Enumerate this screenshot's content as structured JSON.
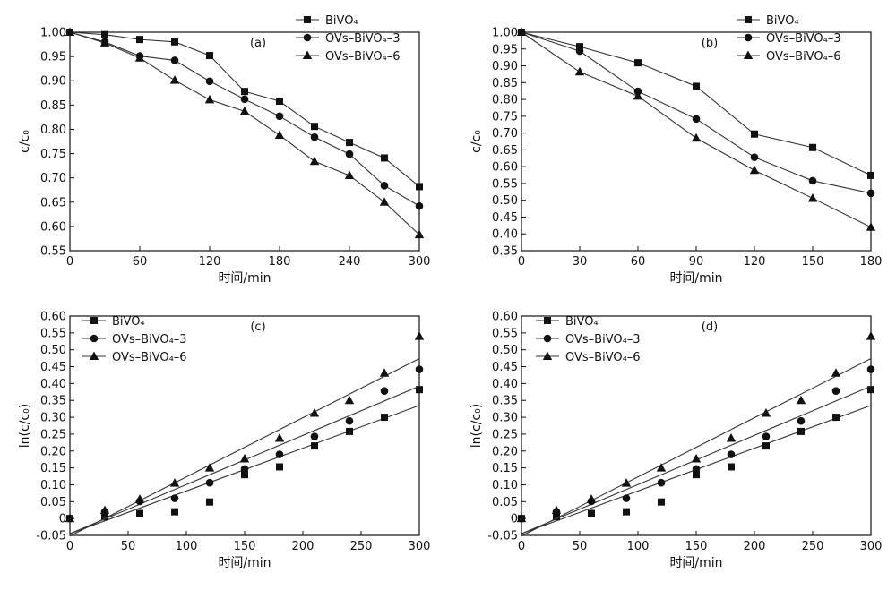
{
  "chart_data": [
    {
      "panel_label": "(a)",
      "type": "line",
      "xlabel": "时间/min",
      "ylabel": "c/c₀",
      "xlim": [
        0,
        300
      ],
      "ylim": [
        0.55,
        1.0
      ],
      "xticks": [
        "0",
        "60",
        "120",
        "180",
        "240",
        "300"
      ],
      "yticks": [
        "0.55",
        "0.60",
        "0.65",
        "0.70",
        "0.75",
        "0.80",
        "0.85",
        "0.90",
        "0.95",
        "1.00"
      ],
      "legend_position": "top-right",
      "x": [
        0,
        30,
        60,
        90,
        120,
        150,
        180,
        210,
        240,
        270,
        300
      ],
      "series": [
        {
          "name": "BiVO₄",
          "marker": "square",
          "values": [
            1.0,
            0.995,
            0.985,
            0.98,
            0.952,
            0.878,
            0.858,
            0.806,
            0.773,
            0.741,
            0.682
          ]
        },
        {
          "name": "OVs–BiVO₄–3",
          "marker": "circle",
          "values": [
            1.0,
            0.98,
            0.951,
            0.942,
            0.899,
            0.862,
            0.827,
            0.784,
            0.749,
            0.684,
            0.642
          ]
        },
        {
          "name": "OVs–BiVO₄–6",
          "marker": "triangle",
          "values": [
            1.0,
            0.978,
            0.947,
            0.901,
            0.861,
            0.837,
            0.788,
            0.734,
            0.705,
            0.65,
            0.583
          ]
        }
      ]
    },
    {
      "panel_label": "(b)",
      "type": "line",
      "xlabel": "时间/min",
      "ylabel": "c/c₀",
      "xlim": [
        0,
        180
      ],
      "ylim": [
        0.35,
        1.0
      ],
      "xticks": [
        "0",
        "30",
        "60",
        "90",
        "120",
        "150",
        "180"
      ],
      "yticks": [
        "0.35",
        "0.40",
        "0.45",
        "0.50",
        "0.55",
        "0.60",
        "0.65",
        "0.70",
        "0.75",
        "0.80",
        "0.85",
        "0.90",
        "0.95",
        "1.00"
      ],
      "legend_position": "top-right",
      "x": [
        0,
        30,
        60,
        90,
        120,
        150,
        180
      ],
      "series": [
        {
          "name": "BiVO₄",
          "marker": "square",
          "values": [
            1.0,
            0.957,
            0.909,
            0.839,
            0.697,
            0.657,
            0.574
          ]
        },
        {
          "name": "OVs–BiVO₄–3",
          "marker": "circle",
          "values": [
            1.0,
            0.944,
            0.824,
            0.742,
            0.628,
            0.558,
            0.521
          ]
        },
        {
          "name": "OVs–BiVO₄–6",
          "marker": "triangle",
          "values": [
            1.0,
            0.882,
            0.81,
            0.685,
            0.589,
            0.506,
            0.42
          ]
        }
      ]
    },
    {
      "panel_label": "(c)",
      "type": "scatter",
      "xlabel": "时间/min",
      "ylabel": "ln(c/c₀)",
      "xlim": [
        0,
        300
      ],
      "ylim": [
        -0.05,
        0.6
      ],
      "xticks": [
        "0",
        "50",
        "100",
        "150",
        "200",
        "250",
        "300"
      ],
      "yticks": [
        "-0.05",
        "0",
        "0.05",
        "0.10",
        "0.15",
        "0.20",
        "0.25",
        "0.30",
        "0.35",
        "0.40",
        "0.45",
        "0.50",
        "0.55",
        "0.60"
      ],
      "legend_position": "top-left",
      "x": [
        0,
        30,
        60,
        90,
        120,
        150,
        180,
        210,
        240,
        270,
        300
      ],
      "series": [
        {
          "name": "BiVO₄",
          "marker": "square",
          "values": [
            0,
            0.005,
            0.015,
            0.02,
            0.049,
            0.13,
            0.153,
            0.215,
            0.258,
            0.3,
            0.382
          ],
          "fit": [
            -0.045,
            0.335
          ]
        },
        {
          "name": "OVs–BiVO₄–3",
          "marker": "circle",
          "values": [
            0,
            0.02,
            0.051,
            0.06,
            0.106,
            0.147,
            0.19,
            0.243,
            0.289,
            0.378,
            0.442
          ],
          "fit": [
            -0.045,
            0.392
          ]
        },
        {
          "name": "OVs–BiVO₄–6",
          "marker": "triangle",
          "values": [
            0,
            0.024,
            0.057,
            0.105,
            0.15,
            0.177,
            0.238,
            0.312,
            0.35,
            0.431,
            0.54
          ],
          "fit": [
            -0.052,
            0.474
          ]
        }
      ]
    },
    {
      "panel_label": "(d)",
      "type": "scatter",
      "xlabel": "时间/min",
      "ylabel": "ln(c/c₀)",
      "xlim": [
        0,
        300
      ],
      "ylim": [
        -0.05,
        0.6
      ],
      "xticks": [
        "0",
        "50",
        "100",
        "150",
        "200",
        "250",
        "300"
      ],
      "yticks": [
        "-0.05",
        "0",
        "0.05",
        "0.10",
        "0.15",
        "0.20",
        "0.25",
        "0.30",
        "0.35",
        "0.40",
        "0.45",
        "0.50",
        "0.55",
        "0.60"
      ],
      "legend_position": "top-left",
      "x": [
        0,
        30,
        60,
        90,
        120,
        150,
        180,
        210,
        240,
        270,
        300
      ],
      "series": [
        {
          "name": "BiVO₄",
          "marker": "square",
          "values": [
            0,
            0.005,
            0.015,
            0.02,
            0.049,
            0.13,
            0.153,
            0.215,
            0.258,
            0.3,
            0.382
          ],
          "fit": [
            -0.045,
            0.335
          ]
        },
        {
          "name": "OVs–BiVO₄–3",
          "marker": "circle",
          "values": [
            0,
            0.02,
            0.051,
            0.06,
            0.106,
            0.147,
            0.19,
            0.243,
            0.289,
            0.378,
            0.442
          ],
          "fit": [
            -0.045,
            0.392
          ]
        },
        {
          "name": "OVs–BiVO₄–6",
          "marker": "triangle",
          "values": [
            0,
            0.024,
            0.057,
            0.105,
            0.15,
            0.177,
            0.238,
            0.312,
            0.35,
            0.431,
            0.54
          ],
          "fit": [
            -0.052,
            0.474
          ]
        }
      ]
    }
  ]
}
